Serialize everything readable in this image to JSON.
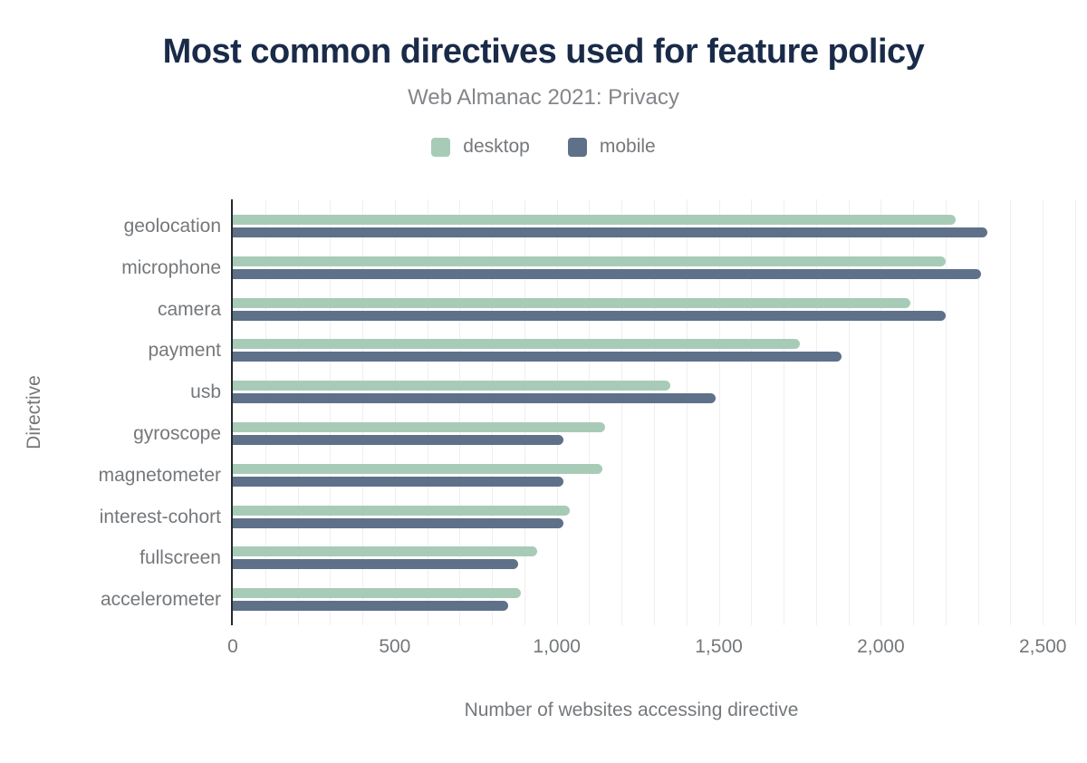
{
  "header": {
    "title": "Most common directives used for feature policy",
    "subtitle": "Web Almanac 2021: Privacy"
  },
  "chart_data": {
    "type": "bar",
    "orientation": "horizontal",
    "title": "Most common directives used for feature policy",
    "subtitle": "Web Almanac 2021: Privacy",
    "categories": [
      "geolocation",
      "microphone",
      "camera",
      "payment",
      "usb",
      "gyroscope",
      "magnetometer",
      "interest-cohort",
      "fullscreen",
      "accelerometer"
    ],
    "series": [
      {
        "name": "desktop",
        "color": "#a8cbb7",
        "values": [
          2230,
          2200,
          2090,
          1750,
          1350,
          1150,
          1140,
          1040,
          940,
          890
        ]
      },
      {
        "name": "mobile",
        "color": "#5f7089",
        "values": [
          2330,
          2310,
          2200,
          1880,
          1490,
          1020,
          1020,
          1020,
          880,
          850
        ]
      }
    ],
    "xlabel": "Number of websites accessing directive",
    "ylabel": "Directive",
    "xlim": [
      0,
      2600
    ],
    "xticks": [
      0,
      500,
      1000,
      1500,
      2000,
      2500
    ],
    "grid_step": 100,
    "grid": true,
    "legend_position": "top",
    "colors": {
      "title": "#1a2b49",
      "subtitle": "#83868a",
      "axis_text": "#75787b",
      "axis_line": "#24292d",
      "gridline": "#efeff1",
      "background": "#ffffff"
    }
  }
}
